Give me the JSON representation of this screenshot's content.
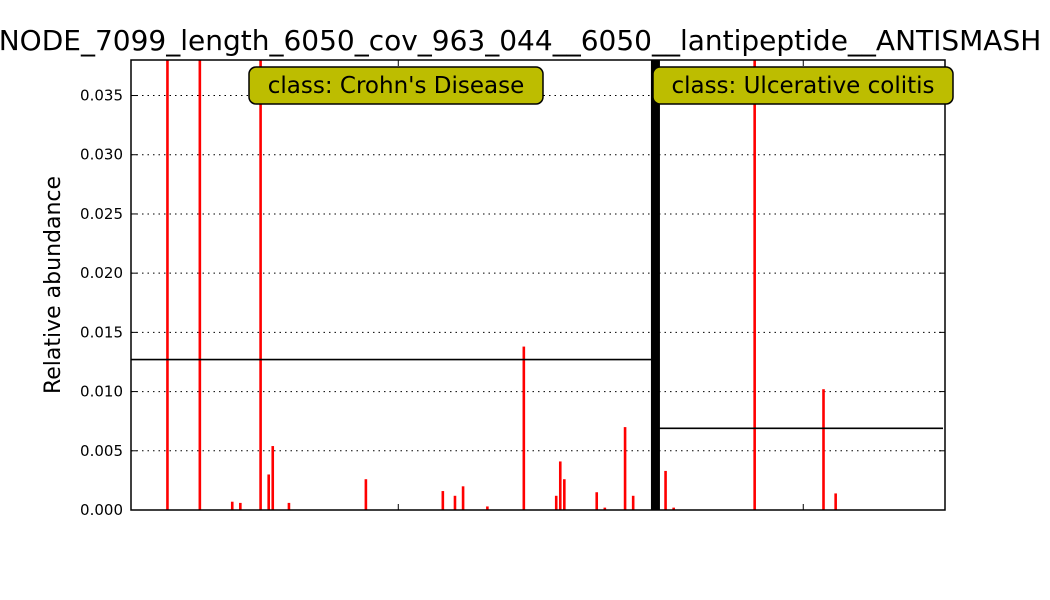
{
  "chart_data": {
    "type": "bar",
    "title": "NODE_7099_length_6050_cov_963_044__6050__lantipeptide__ANTISMASH",
    "xlabel": "",
    "ylabel": "Relative abundance",
    "ylim": [
      0,
      0.038
    ],
    "yticks": [
      "0.000",
      "0.005",
      "0.010",
      "0.015",
      "0.020",
      "0.025",
      "0.030",
      "0.035"
    ],
    "ytick_values": [
      0,
      0.005,
      0.01,
      0.015,
      0.02,
      0.025,
      0.03,
      0.035
    ],
    "grid": "y-dotted",
    "bar_color": "#ff0000",
    "box_color": "#bdbd00",
    "x_count": 202,
    "groups": [
      {
        "label": "class: Crohn's Disease",
        "start": 0,
        "end": 129,
        "mean": 0.0127,
        "bars": [
          {
            "x": 9,
            "y": 0.038
          },
          {
            "x": 17,
            "y": 0.038
          },
          {
            "x": 25,
            "y": 0.0007
          },
          {
            "x": 27,
            "y": 0.0006
          },
          {
            "x": 32,
            "y": 0.038
          },
          {
            "x": 34,
            "y": 0.003
          },
          {
            "x": 35,
            "y": 0.0054
          },
          {
            "x": 39,
            "y": 0.0006
          },
          {
            "x": 58,
            "y": 0.0026
          },
          {
            "x": 77,
            "y": 0.0016
          },
          {
            "x": 80,
            "y": 0.0012
          },
          {
            "x": 82,
            "y": 0.002
          },
          {
            "x": 88,
            "y": 0.0003
          },
          {
            "x": 97,
            "y": 0.0138
          },
          {
            "x": 105,
            "y": 0.0012
          },
          {
            "x": 106,
            "y": 0.0041
          },
          {
            "x": 107,
            "y": 0.0026
          },
          {
            "x": 115,
            "y": 0.0015
          },
          {
            "x": 117,
            "y": 0.0002
          },
          {
            "x": 122,
            "y": 0.007
          },
          {
            "x": 124,
            "y": 0.0012
          }
        ]
      },
      {
        "label": "class: Ulcerative colitis",
        "start": 130,
        "end": 201,
        "mean": 0.0069,
        "bars": [
          {
            "x": 132,
            "y": 0.0033
          },
          {
            "x": 134,
            "y": 0.0002
          },
          {
            "x": 154,
            "y": 0.038
          },
          {
            "x": 171,
            "y": 0.0102
          },
          {
            "x": 174,
            "y": 0.0014
          }
        ]
      }
    ],
    "x_minor_ticks": [
      66,
      166
    ]
  }
}
